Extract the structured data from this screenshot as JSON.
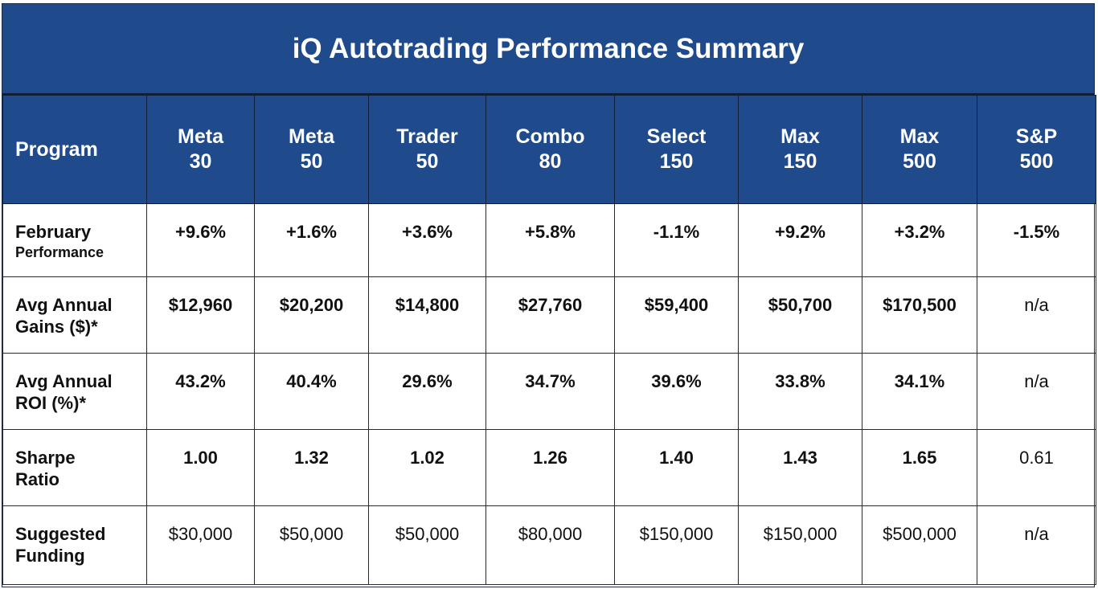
{
  "title": "iQ Autotrading Performance Summary",
  "columns": [
    {
      "l1": "Program",
      "l2": ""
    },
    {
      "l1": "Meta",
      "l2": "30"
    },
    {
      "l1": "Meta",
      "l2": "50"
    },
    {
      "l1": "Trader",
      "l2": "50"
    },
    {
      "l1": "Combo",
      "l2": "80"
    },
    {
      "l1": "Select",
      "l2": "150"
    },
    {
      "l1": "Max",
      "l2": "150"
    },
    {
      "l1": "Max",
      "l2": "500"
    },
    {
      "l1": "S&P",
      "l2": "500"
    }
  ],
  "rows": [
    {
      "label1": "February",
      "label2": "Performance",
      "values": [
        "+9.6%",
        "+1.6%",
        "+3.6%",
        "+5.8%",
        "-1.1%",
        "+9.2%",
        "+3.2%",
        "-1.5%"
      ],
      "bold": [
        true,
        true,
        true,
        true,
        true,
        true,
        true,
        true
      ]
    },
    {
      "label1": "Avg Annual",
      "label2": "Gains ($)*",
      "values": [
        "$12,960",
        "$20,200",
        "$14,800",
        "$27,760",
        "$59,400",
        "$50,700",
        "$170,500",
        "n/a"
      ],
      "bold": [
        true,
        true,
        true,
        true,
        true,
        true,
        true,
        false
      ]
    },
    {
      "label1": "Avg Annual",
      "label2": "ROI (%)*",
      "values": [
        "43.2%",
        "40.4%",
        "29.6%",
        "34.7%",
        "39.6%",
        "33.8%",
        "34.1%",
        "n/a"
      ],
      "bold": [
        true,
        true,
        true,
        true,
        true,
        true,
        true,
        false
      ]
    },
    {
      "label1": "Sharpe",
      "label2": "Ratio",
      "values": [
        "1.00",
        "1.32",
        "1.02",
        "1.26",
        "1.40",
        "1.43",
        "1.65",
        "0.61"
      ],
      "bold": [
        true,
        true,
        true,
        true,
        true,
        true,
        true,
        false
      ]
    },
    {
      "label1": "Suggested",
      "label2": "Funding",
      "values": [
        "$30,000",
        "$50,000",
        "$50,000",
        "$80,000",
        "$150,000",
        "$150,000",
        "$500,000",
        "n/a"
      ],
      "bold": [
        false,
        false,
        false,
        false,
        false,
        false,
        false,
        false
      ]
    }
  ],
  "colors": {
    "header_bg": "#1f4a8c",
    "header_text": "#ffffff",
    "body_text": "#111111"
  }
}
